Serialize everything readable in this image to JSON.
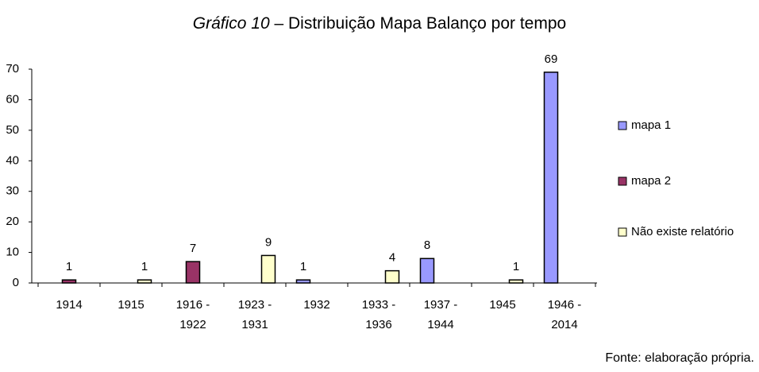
{
  "chart_data": {
    "type": "bar",
    "title": "Gráfico 10 – Distribuição Mapa Balanço por tempo",
    "source": "Fonte: elaboração própria.",
    "categories": [
      "1914",
      "1915",
      "1916 - 1922",
      "1923 - 1931",
      "1932",
      "1933 - 1936",
      "1937 - 1944",
      "1945",
      "1946 - 2014"
    ],
    "series": [
      {
        "name": "mapa 1",
        "color": "#9999ff",
        "values": [
          null,
          null,
          null,
          null,
          1,
          null,
          8,
          null,
          69
        ]
      },
      {
        "name": "mapa 2",
        "color": "#993366",
        "values": [
          1,
          null,
          7,
          null,
          null,
          null,
          null,
          null,
          null
        ]
      },
      {
        "name": "Não existe relatório",
        "color": "#ffffcc",
        "values": [
          null,
          1,
          null,
          9,
          null,
          4,
          null,
          1,
          null
        ]
      }
    ],
    "ylim": [
      0,
      70
    ],
    "yticks": [
      0,
      10,
      20,
      30,
      40,
      50,
      60,
      70
    ],
    "grid": false,
    "legend": "right"
  }
}
